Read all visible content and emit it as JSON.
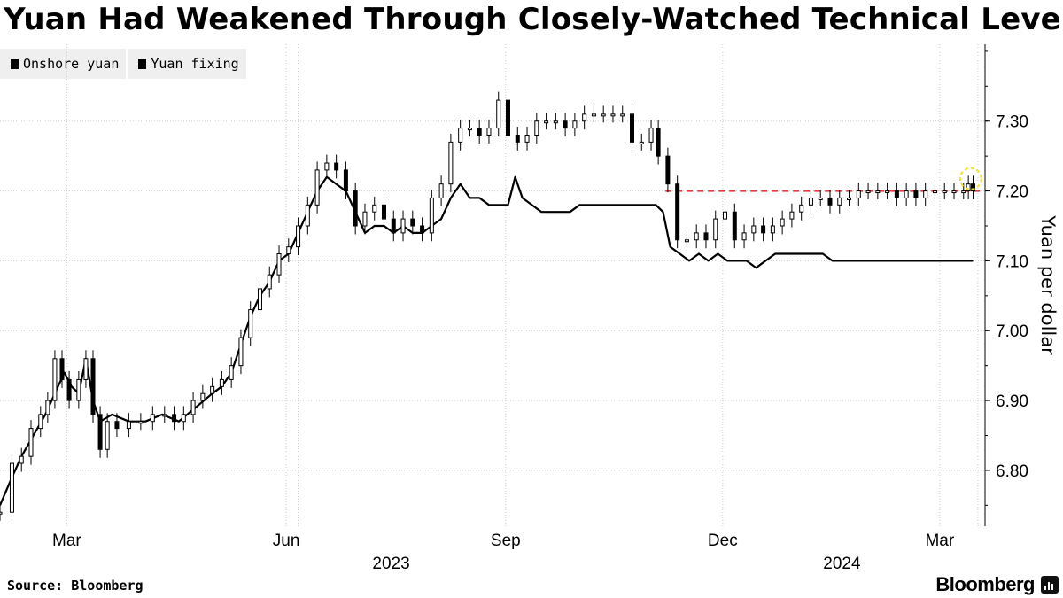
{
  "title": "Yuan Had Weakened Through Closely-Watched Technical Level",
  "legend": [
    {
      "label": "Onshore yuan",
      "color": "#000000"
    },
    {
      "label": "Yuan fixing",
      "color": "#000000"
    }
  ],
  "source": "Source: Bloomberg",
  "brand": "Bloomberg",
  "brand_icon": "bloomberg-terminal-icon",
  "colors": {
    "threshold_line": "#e8393f",
    "highlight_circle": "#f5e032",
    "grid": "#cccccc"
  },
  "chart_data": {
    "type": "line",
    "title": "Yuan Had Weakened Through Closely-Watched Technical Level",
    "ylabel": "Yuan per dollar",
    "xlabel": "",
    "ylim": [
      6.72,
      7.41
    ],
    "xlim": [
      "2023-02-01",
      "2024-03-20"
    ],
    "yticks": [
      6.8,
      6.9,
      7.0,
      7.1,
      7.2,
      7.3
    ],
    "ytick_labels": [
      "6.80",
      "6.90",
      "7.00",
      "7.10",
      "7.20",
      "7.30"
    ],
    "xticks": [
      {
        "date": "2023-03-01",
        "label": "Mar"
      },
      {
        "date": "2023-06-01",
        "label": "Jun"
      },
      {
        "date": "2023-09-01",
        "label": "Sep"
      },
      {
        "date": "2023-12-01",
        "label": "Dec"
      },
      {
        "date": "2024-03-01",
        "label": "Mar"
      }
    ],
    "year_labels": [
      {
        "date": "2023-07-15",
        "label": "2023"
      },
      {
        "date": "2024-01-20",
        "label": "2024"
      }
    ],
    "year_separators": [
      "2023-06-06",
      "2024-03-17"
    ],
    "threshold": {
      "value": 7.2,
      "from": "2023-11-07",
      "to": "2024-03-20",
      "style": "dashed",
      "label": ""
    },
    "highlight": {
      "date": "2024-03-14",
      "value": 7.21
    },
    "series": [
      {
        "name": "Onshore yuan",
        "style": "candlestick",
        "points": [
          [
            "2023-02-01",
            6.74
          ],
          [
            "2023-02-06",
            6.81
          ],
          [
            "2023-02-10",
            6.82
          ],
          [
            "2023-02-14",
            6.86
          ],
          [
            "2023-02-18",
            6.88
          ],
          [
            "2023-02-21",
            6.9
          ],
          [
            "2023-02-24",
            6.96
          ],
          [
            "2023-02-27",
            6.93
          ],
          [
            "2023-03-02",
            6.9
          ],
          [
            "2023-03-06",
            6.93
          ],
          [
            "2023-03-09",
            6.96
          ],
          [
            "2023-03-12",
            6.88
          ],
          [
            "2023-03-15",
            6.83
          ],
          [
            "2023-03-18",
            6.87
          ],
          [
            "2023-03-22",
            6.86
          ],
          [
            "2023-03-27",
            6.87
          ],
          [
            "2023-04-01",
            6.87
          ],
          [
            "2023-04-06",
            6.88
          ],
          [
            "2023-04-11",
            6.88
          ],
          [
            "2023-04-15",
            6.87
          ],
          [
            "2023-04-19",
            6.88
          ],
          [
            "2023-04-23",
            6.9
          ],
          [
            "2023-04-27",
            6.91
          ],
          [
            "2023-05-01",
            6.92
          ],
          [
            "2023-05-05",
            6.93
          ],
          [
            "2023-05-09",
            6.95
          ],
          [
            "2023-05-13",
            6.99
          ],
          [
            "2023-05-17",
            7.03
          ],
          [
            "2023-05-21",
            7.06
          ],
          [
            "2023-05-25",
            7.08
          ],
          [
            "2023-05-29",
            7.11
          ],
          [
            "2023-06-02",
            7.12
          ],
          [
            "2023-06-06",
            7.15
          ],
          [
            "2023-06-10",
            7.18
          ],
          [
            "2023-06-14",
            7.23
          ],
          [
            "2023-06-18",
            7.24
          ],
          [
            "2023-06-22",
            7.23
          ],
          [
            "2023-06-26",
            7.2
          ],
          [
            "2023-06-30",
            7.15
          ],
          [
            "2023-07-04",
            7.17
          ],
          [
            "2023-07-08",
            7.18
          ],
          [
            "2023-07-12",
            7.16
          ],
          [
            "2023-07-16",
            7.14
          ],
          [
            "2023-07-20",
            7.16
          ],
          [
            "2023-07-24",
            7.15
          ],
          [
            "2023-07-28",
            7.14
          ],
          [
            "2023-08-01",
            7.19
          ],
          [
            "2023-08-05",
            7.21
          ],
          [
            "2023-08-09",
            7.27
          ],
          [
            "2023-08-13",
            7.29
          ],
          [
            "2023-08-17",
            7.29
          ],
          [
            "2023-08-21",
            7.28
          ],
          [
            "2023-08-25",
            7.29
          ],
          [
            "2023-08-29",
            7.33
          ],
          [
            "2023-09-02",
            7.28
          ],
          [
            "2023-09-06",
            7.27
          ],
          [
            "2023-09-10",
            7.28
          ],
          [
            "2023-09-14",
            7.3
          ],
          [
            "2023-09-18",
            7.3
          ],
          [
            "2023-09-22",
            7.3
          ],
          [
            "2023-09-26",
            7.29
          ],
          [
            "2023-09-30",
            7.3
          ],
          [
            "2023-10-04",
            7.31
          ],
          [
            "2023-10-08",
            7.31
          ],
          [
            "2023-10-12",
            7.31
          ],
          [
            "2023-10-16",
            7.31
          ],
          [
            "2023-10-20",
            7.31
          ],
          [
            "2023-10-24",
            7.27
          ],
          [
            "2023-10-28",
            7.27
          ],
          [
            "2023-11-01",
            7.29
          ],
          [
            "2023-11-04",
            7.25
          ],
          [
            "2023-11-08",
            7.21
          ],
          [
            "2023-11-12",
            7.13
          ],
          [
            "2023-11-16",
            7.13
          ],
          [
            "2023-11-20",
            7.14
          ],
          [
            "2023-11-24",
            7.13
          ],
          [
            "2023-11-28",
            7.16
          ],
          [
            "2023-12-02",
            7.17
          ],
          [
            "2023-12-06",
            7.13
          ],
          [
            "2023-12-10",
            7.14
          ],
          [
            "2023-12-14",
            7.15
          ],
          [
            "2023-12-18",
            7.14
          ],
          [
            "2023-12-22",
            7.15
          ],
          [
            "2023-12-26",
            7.16
          ],
          [
            "2023-12-30",
            7.17
          ],
          [
            "2024-01-03",
            7.18
          ],
          [
            "2024-01-07",
            7.19
          ],
          [
            "2024-01-11",
            7.19
          ],
          [
            "2024-01-15",
            7.18
          ],
          [
            "2024-01-19",
            7.19
          ],
          [
            "2024-01-23",
            7.19
          ],
          [
            "2024-01-27",
            7.2
          ],
          [
            "2024-01-31",
            7.2
          ],
          [
            "2024-02-04",
            7.2
          ],
          [
            "2024-02-08",
            7.2
          ],
          [
            "2024-02-12",
            7.19
          ],
          [
            "2024-02-16",
            7.2
          ],
          [
            "2024-02-20",
            7.19
          ],
          [
            "2024-02-24",
            7.2
          ],
          [
            "2024-02-28",
            7.2
          ],
          [
            "2024-03-03",
            7.2
          ],
          [
            "2024-03-07",
            7.2
          ],
          [
            "2024-03-11",
            7.2
          ],
          [
            "2024-03-13",
            7.21
          ],
          [
            "2024-03-15",
            7.2
          ]
        ]
      },
      {
        "name": "Yuan fixing",
        "style": "line",
        "points": [
          [
            "2023-02-01",
            6.75
          ],
          [
            "2023-02-06",
            6.79
          ],
          [
            "2023-02-10",
            6.82
          ],
          [
            "2023-02-15",
            6.85
          ],
          [
            "2023-02-20",
            6.88
          ],
          [
            "2023-02-24",
            6.91
          ],
          [
            "2023-02-28",
            6.94
          ],
          [
            "2023-03-03",
            6.92
          ],
          [
            "2023-03-06",
            6.91
          ],
          [
            "2023-03-09",
            6.96
          ],
          [
            "2023-03-12",
            6.9
          ],
          [
            "2023-03-15",
            6.87
          ],
          [
            "2023-03-20",
            6.88
          ],
          [
            "2023-03-27",
            6.87
          ],
          [
            "2023-04-03",
            6.87
          ],
          [
            "2023-04-10",
            6.88
          ],
          [
            "2023-04-17",
            6.87
          ],
          [
            "2023-04-24",
            6.89
          ],
          [
            "2023-05-01",
            6.91
          ],
          [
            "2023-05-05",
            6.92
          ],
          [
            "2023-05-09",
            6.94
          ],
          [
            "2023-05-13",
            6.98
          ],
          [
            "2023-05-17",
            7.02
          ],
          [
            "2023-05-21",
            7.05
          ],
          [
            "2023-05-25",
            7.07
          ],
          [
            "2023-05-29",
            7.1
          ],
          [
            "2023-06-02",
            7.11
          ],
          [
            "2023-06-06",
            7.14
          ],
          [
            "2023-06-10",
            7.17
          ],
          [
            "2023-06-14",
            7.2
          ],
          [
            "2023-06-18",
            7.22
          ],
          [
            "2023-06-22",
            7.21
          ],
          [
            "2023-06-26",
            7.2
          ],
          [
            "2023-06-30",
            7.17
          ],
          [
            "2023-07-04",
            7.14
          ],
          [
            "2023-07-08",
            7.15
          ],
          [
            "2023-07-12",
            7.15
          ],
          [
            "2023-07-16",
            7.14
          ],
          [
            "2023-07-20",
            7.15
          ],
          [
            "2023-07-24",
            7.14
          ],
          [
            "2023-07-28",
            7.14
          ],
          [
            "2023-08-01",
            7.15
          ],
          [
            "2023-08-05",
            7.16
          ],
          [
            "2023-08-09",
            7.19
          ],
          [
            "2023-08-13",
            7.21
          ],
          [
            "2023-08-17",
            7.19
          ],
          [
            "2023-08-21",
            7.19
          ],
          [
            "2023-08-25",
            7.18
          ],
          [
            "2023-08-29",
            7.18
          ],
          [
            "2023-09-02",
            7.18
          ],
          [
            "2023-09-05",
            7.22
          ],
          [
            "2023-09-08",
            7.19
          ],
          [
            "2023-09-12",
            7.18
          ],
          [
            "2023-09-16",
            7.17
          ],
          [
            "2023-09-20",
            7.17
          ],
          [
            "2023-09-24",
            7.17
          ],
          [
            "2023-09-28",
            7.17
          ],
          [
            "2023-10-02",
            7.18
          ],
          [
            "2023-10-08",
            7.18
          ],
          [
            "2023-10-15",
            7.18
          ],
          [
            "2023-10-22",
            7.18
          ],
          [
            "2023-10-29",
            7.18
          ],
          [
            "2023-11-03",
            7.18
          ],
          [
            "2023-11-06",
            7.17
          ],
          [
            "2023-11-09",
            7.12
          ],
          [
            "2023-11-13",
            7.11
          ],
          [
            "2023-11-17",
            7.1
          ],
          [
            "2023-11-21",
            7.11
          ],
          [
            "2023-11-25",
            7.1
          ],
          [
            "2023-11-29",
            7.11
          ],
          [
            "2023-12-03",
            7.1
          ],
          [
            "2023-12-07",
            7.1
          ],
          [
            "2023-12-11",
            7.1
          ],
          [
            "2023-12-15",
            7.09
          ],
          [
            "2023-12-19",
            7.1
          ],
          [
            "2023-12-23",
            7.11
          ],
          [
            "2023-12-27",
            7.11
          ],
          [
            "2023-12-31",
            7.11
          ],
          [
            "2024-01-04",
            7.11
          ],
          [
            "2024-01-08",
            7.11
          ],
          [
            "2024-01-12",
            7.11
          ],
          [
            "2024-01-16",
            7.1
          ],
          [
            "2024-01-20",
            7.1
          ],
          [
            "2024-01-24",
            7.1
          ],
          [
            "2024-01-28",
            7.1
          ],
          [
            "2024-02-01",
            7.1
          ],
          [
            "2024-02-05",
            7.1
          ],
          [
            "2024-02-09",
            7.1
          ],
          [
            "2024-02-13",
            7.1
          ],
          [
            "2024-02-17",
            7.1
          ],
          [
            "2024-02-21",
            7.1
          ],
          [
            "2024-02-25",
            7.1
          ],
          [
            "2024-02-29",
            7.1
          ],
          [
            "2024-03-04",
            7.1
          ],
          [
            "2024-03-08",
            7.1
          ],
          [
            "2024-03-12",
            7.1
          ],
          [
            "2024-03-15",
            7.1
          ]
        ]
      }
    ]
  }
}
